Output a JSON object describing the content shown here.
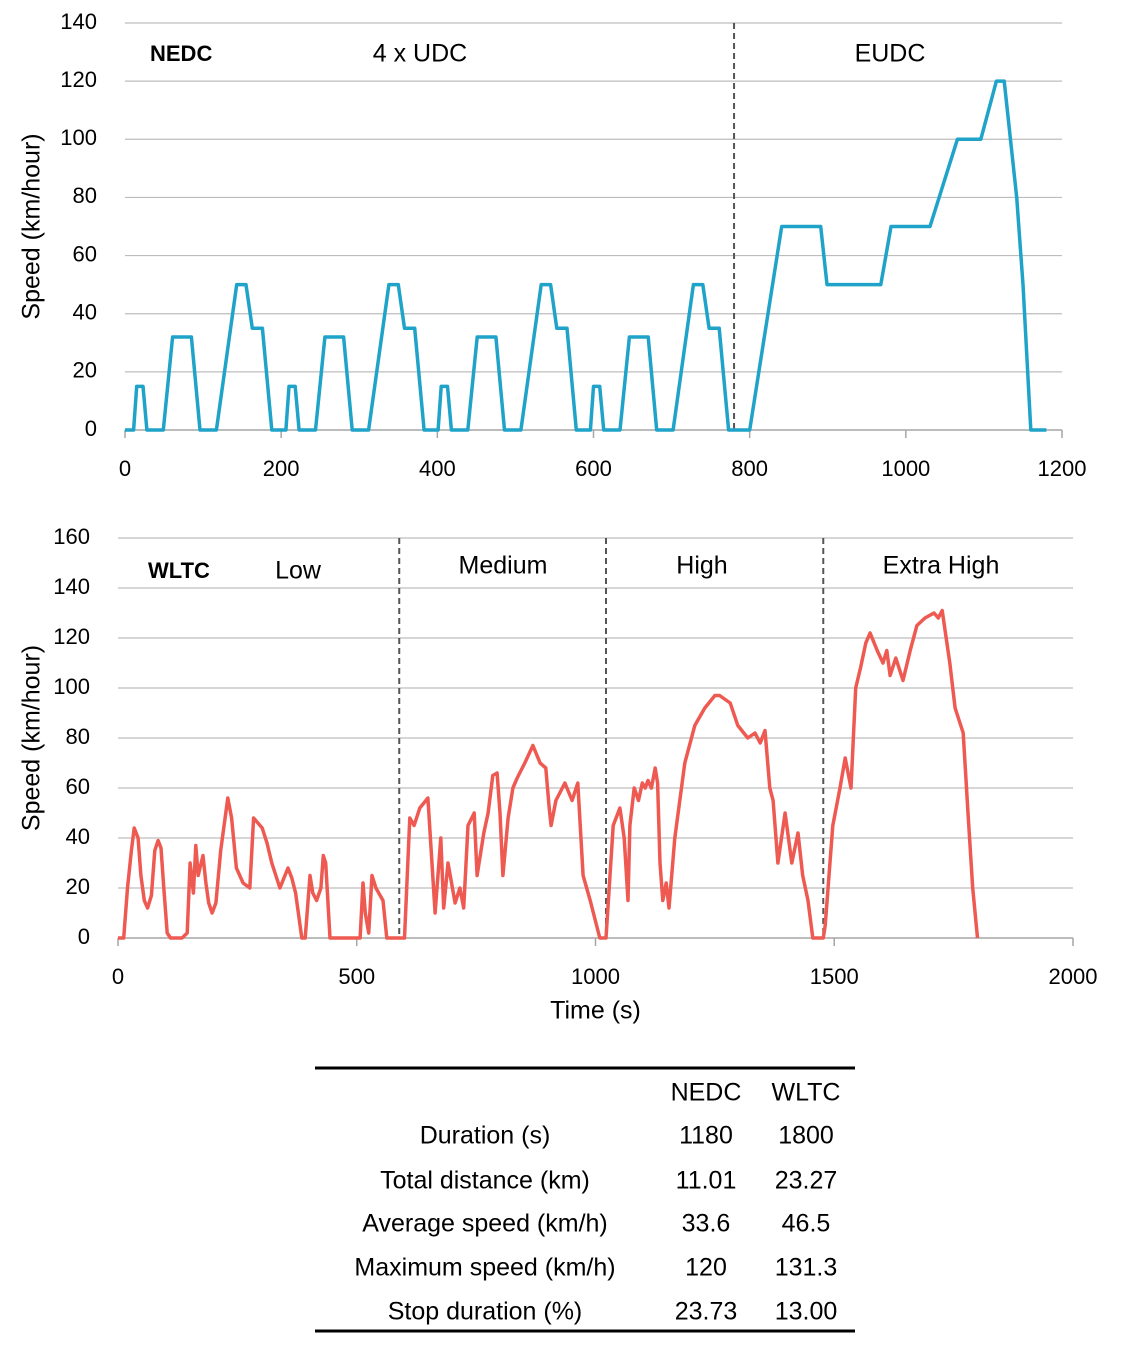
{
  "chart_data": [
    {
      "type": "line",
      "title": "NEDC",
      "ylabel": "Speed (km/hour)",
      "color": "#1fa3c9",
      "phases": [
        "4 x UDC",
        "EUDC"
      ],
      "phase_boundaries": [
        780
      ],
      "x": [
        0,
        11,
        15,
        23,
        28,
        49,
        61,
        85,
        96,
        117,
        143,
        155,
        163,
        176,
        188,
        206,
        210,
        218,
        223,
        244,
        256,
        280,
        291,
        312,
        338,
        350,
        358,
        371,
        383,
        401,
        405,
        413,
        418,
        439,
        451,
        475,
        486,
        507,
        533,
        545,
        553,
        566,
        578,
        596,
        600,
        608,
        613,
        634,
        646,
        670,
        681,
        702,
        728,
        740,
        748,
        761,
        773,
        800,
        841,
        891,
        899,
        968,
        981,
        1031,
        1066,
        1096,
        1116,
        1126,
        1142,
        1150,
        1160,
        1180
      ],
      "values": [
        0,
        0,
        15,
        15,
        0,
        0,
        32,
        32,
        0,
        0,
        50,
        50,
        35,
        35,
        0,
        0,
        15,
        15,
        0,
        0,
        32,
        32,
        0,
        0,
        50,
        50,
        35,
        35,
        0,
        0,
        15,
        15,
        0,
        0,
        32,
        32,
        0,
        0,
        50,
        50,
        35,
        35,
        0,
        0,
        15,
        15,
        0,
        0,
        32,
        32,
        0,
        0,
        50,
        50,
        35,
        35,
        0,
        0,
        70,
        70,
        50,
        50,
        70,
        70,
        100,
        100,
        120,
        120,
        80,
        50,
        0,
        0
      ],
      "xlim": [
        0,
        1200
      ],
      "xticks": [
        0,
        200,
        400,
        600,
        800,
        1000,
        1200
      ],
      "ylim": [
        0,
        140
      ],
      "yticks": [
        0,
        20,
        40,
        60,
        80,
        100,
        120,
        140
      ],
      "grid": true
    },
    {
      "type": "line",
      "title": "WLTC",
      "ylabel": "Speed (km/hour)",
      "xlabel": "Time (s)",
      "color": "#ee5a52",
      "phases": [
        "Low",
        "Medium",
        "High",
        "Extra High"
      ],
      "phase_boundaries": [
        589,
        1022,
        1477
      ],
      "x": [
        0,
        12,
        20,
        28,
        34,
        42,
        48,
        55,
        62,
        70,
        77,
        84,
        90,
        96,
        103,
        110,
        134,
        145,
        151,
        158,
        163,
        168,
        178,
        184,
        190,
        197,
        205,
        215,
        230,
        238,
        248,
        262,
        276,
        284,
        293,
        302,
        312,
        322,
        339,
        356,
        364,
        372,
        385,
        392,
        402,
        408,
        416,
        425,
        430,
        435,
        444,
        507,
        513,
        518,
        525,
        532,
        540,
        555,
        563,
        589,
        600,
        611,
        620,
        632,
        649,
        664,
        676,
        682,
        691,
        706,
        716,
        724,
        733,
        746,
        752,
        766,
        775,
        785,
        794,
        800,
        806,
        817,
        827,
        836,
        852,
        869,
        884,
        896,
        903,
        907,
        917,
        936,
        951,
        963,
        974,
        989,
        1009,
        1022,
        1037,
        1051,
        1060,
        1068,
        1072,
        1081,
        1090,
        1098,
        1104,
        1110,
        1117,
        1125,
        1130,
        1135,
        1141,
        1148,
        1154,
        1166,
        1187,
        1208,
        1229,
        1250,
        1260,
        1282,
        1298,
        1319,
        1334,
        1345,
        1355,
        1365,
        1372,
        1382,
        1397,
        1411,
        1424,
        1434,
        1445,
        1455,
        1477,
        1481,
        1497,
        1512,
        1523,
        1535,
        1545,
        1555,
        1566,
        1575,
        1590,
        1602,
        1610,
        1617,
        1629,
        1644,
        1659,
        1673,
        1690,
        1709,
        1718,
        1726,
        1742,
        1753,
        1770,
        1780,
        1790,
        1800
      ],
      "values": [
        0,
        0,
        20,
        35,
        44,
        40,
        25,
        15,
        12,
        17,
        35,
        39,
        36,
        20,
        2,
        0,
        0,
        2,
        30,
        18,
        37,
        25,
        33,
        22,
        14,
        10,
        14,
        35,
        56,
        48,
        28,
        22,
        20,
        48,
        46,
        44,
        38,
        30,
        20,
        28,
        24,
        18,
        0,
        0,
        25,
        18,
        15,
        20,
        33,
        30,
        0,
        0,
        22,
        10,
        2,
        25,
        20,
        15,
        0,
        0,
        0,
        48,
        45,
        52,
        56,
        10,
        40,
        12,
        30,
        14,
        20,
        12,
        45,
        50,
        25,
        42,
        50,
        65,
        66,
        50,
        25,
        48,
        60,
        64,
        70,
        77,
        70,
        68,
        52,
        45,
        55,
        62,
        55,
        62,
        25,
        15,
        0,
        0,
        45,
        52,
        40,
        15,
        45,
        60,
        55,
        62,
        60,
        63,
        60,
        68,
        62,
        30,
        15,
        22,
        12,
        40,
        70,
        85,
        92,
        97,
        97,
        94,
        85,
        80,
        82,
        78,
        83,
        60,
        55,
        30,
        50,
        30,
        42,
        25,
        15,
        0,
        0,
        5,
        45,
        60,
        72,
        60,
        100,
        108,
        118,
        122,
        115,
        110,
        115,
        105,
        112,
        103,
        115,
        125,
        128,
        130,
        128,
        131,
        110,
        92,
        82,
        50,
        20,
        0
      ],
      "xlim": [
        0,
        2000
      ],
      "xticks": [
        0,
        500,
        1000,
        1500,
        2000
      ],
      "ylim": [
        0,
        160
      ],
      "yticks": [
        0,
        20,
        40,
        60,
        80,
        100,
        120,
        140,
        160
      ],
      "grid": true
    }
  ],
  "table": {
    "columns": [
      "NEDC",
      "WLTC"
    ],
    "rows": [
      {
        "label": "Duration (s)",
        "values": [
          "1180",
          "1800"
        ]
      },
      {
        "label": "Total distance (km)",
        "values": [
          "11.01",
          "23.27"
        ]
      },
      {
        "label": "Average speed (km/h)",
        "values": [
          "33.6",
          "46.5"
        ]
      },
      {
        "label": "Maximum speed (km/h)",
        "values": [
          "120",
          "131.3"
        ]
      },
      {
        "label": "Stop duration (%)",
        "values": [
          "23.73",
          "13.00"
        ]
      }
    ]
  }
}
